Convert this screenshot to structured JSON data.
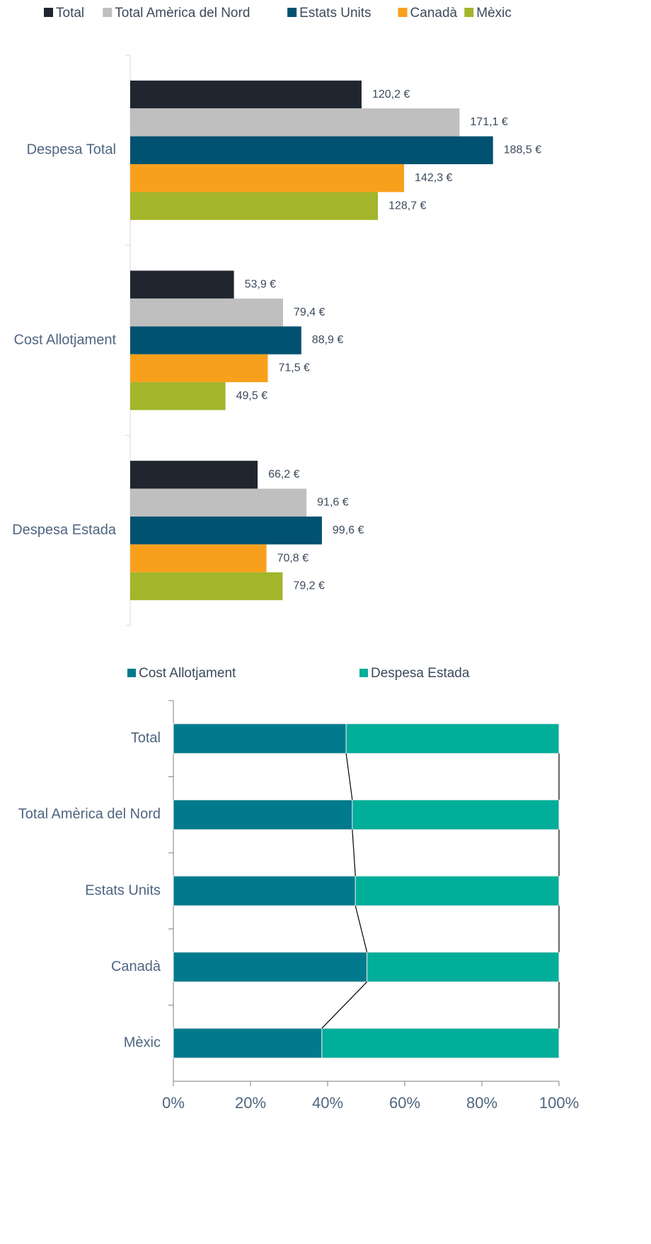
{
  "chart_data": [
    {
      "type": "bar",
      "orientation": "horizontal",
      "categories": [
        "Despesa Total",
        "Cost Allotjament",
        "Despesa Estada"
      ],
      "xlim": [
        0,
        200
      ],
      "series": [
        {
          "name": "Total",
          "color": "#1f2630",
          "values": [
            120.2,
            53.9,
            66.2
          ],
          "value_labels": [
            "120,2 €",
            "53,9 €",
            "66,2 €"
          ]
        },
        {
          "name": "Total Amèrica del Nord",
          "color": "#bfbfbf",
          "values": [
            171.1,
            79.4,
            91.6
          ],
          "value_labels": [
            "171,1 €",
            "79,4 €",
            "91,6 €"
          ]
        },
        {
          "name": "Estats Units",
          "color": "#005270",
          "values": [
            188.5,
            88.9,
            99.6
          ],
          "value_labels": [
            "188,5 €",
            "88,9 €",
            "99,6 €"
          ]
        },
        {
          "name": "Canadà",
          "color": "#f8a01c",
          "values": [
            142.3,
            71.5,
            70.8
          ],
          "value_labels": [
            "142,3 €",
            "71,5 €",
            "70,8 €"
          ]
        },
        {
          "name": "Mèxic",
          "color": "#a2b52b",
          "values": [
            128.7,
            49.5,
            79.2
          ],
          "value_labels": [
            "128,7 €",
            "49,5 €",
            "79,2 €"
          ]
        }
      ]
    },
    {
      "type": "stacked_bar",
      "orientation": "horizontal",
      "categories": [
        "Total",
        "Total Amèrica del Nord",
        "Estats Units",
        "Canadà",
        "Mèxic"
      ],
      "xlim": [
        0,
        100
      ],
      "xticks": [
        {
          "value": 0,
          "label": "0%"
        },
        {
          "value": 20,
          "label": "20%"
        },
        {
          "value": 40,
          "label": "40%"
        },
        {
          "value": 60,
          "label": "60%"
        },
        {
          "value": 80,
          "label": "80%"
        },
        {
          "value": 100,
          "label": "100%"
        }
      ],
      "series": [
        {
          "name": "Cost Allotjament",
          "color": "#007a8c",
          "values": [
            44.8,
            46.4,
            47.2,
            50.2,
            38.5
          ]
        },
        {
          "name": "Despesa Estada",
          "color": "#00ae9a",
          "values": [
            55.2,
            53.6,
            52.8,
            49.8,
            61.5
          ]
        }
      ]
    }
  ]
}
